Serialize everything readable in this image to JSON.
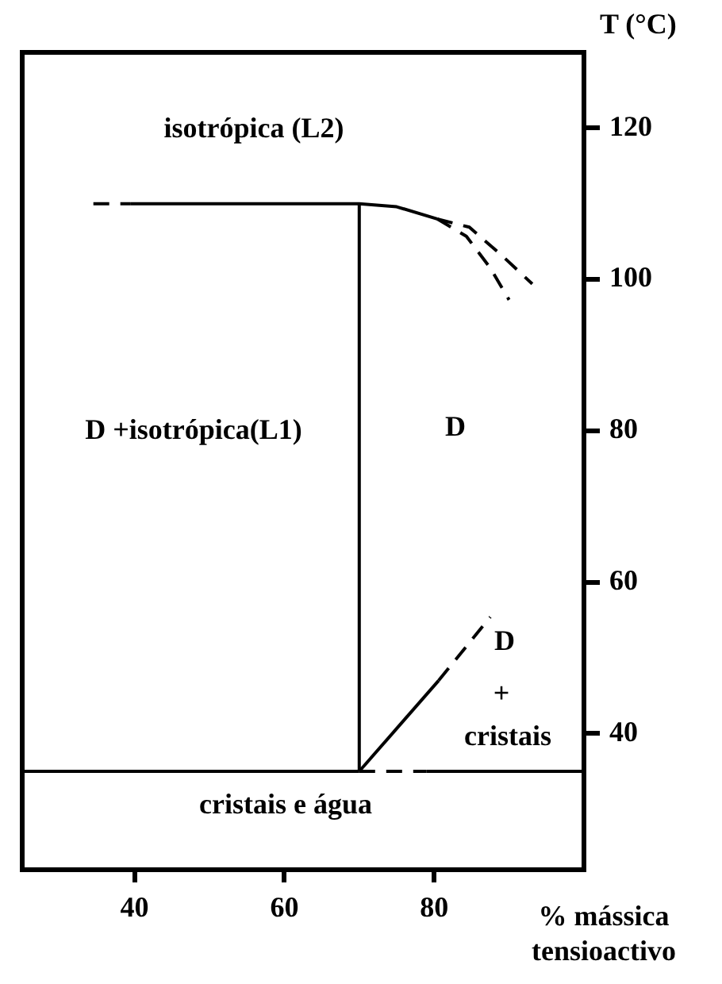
{
  "chart_data": {
    "type": "line",
    "xlabel": "% mássica tensioactivo",
    "ylabel": "T (°C)",
    "xlim": [
      25,
      100
    ],
    "xticks": [
      40,
      60,
      80
    ],
    "ylim": [
      22,
      130
    ],
    "yticks": [
      40,
      60,
      80,
      100,
      120
    ],
    "grid": false,
    "legend": false,
    "marker": "none",
    "series": [
      {
        "color": "#000000",
        "line_style": "dashed",
        "x": [
          34.5,
          39.5
        ],
        "values": [
          110,
          110
        ]
      },
      {
        "color": "#000000",
        "line_style": "solid",
        "x": [
          39.5,
          70,
          75,
          80.4
        ],
        "values": [
          110,
          110,
          109.6,
          108
        ]
      },
      {
        "color": "#000000",
        "line_style": "solid",
        "x": [
          70,
          70
        ],
        "values": [
          35,
          110
        ]
      },
      {
        "color": "#000000",
        "line_style": "solid",
        "x": [
          25,
          70
        ],
        "values": [
          35,
          35
        ]
      },
      {
        "color": "#000000",
        "line_style": "solid",
        "x": [
          79,
          100
        ],
        "values": [
          35,
          35
        ]
      },
      {
        "color": "#000000",
        "line_style": "dashed",
        "x": [
          80.4,
          84.7,
          89,
          93.1
        ],
        "values": [
          108,
          106.9,
          103.2,
          99.4
        ]
      },
      {
        "color": "#000000",
        "line_style": "dashed",
        "x": [
          80.4,
          84.3,
          87.5,
          90
        ],
        "values": [
          108,
          105.7,
          101.5,
          97.3
        ]
      },
      {
        "color": "#000000",
        "line_style": "solid",
        "x": [
          70,
          80.6
        ],
        "values": [
          35,
          47
        ]
      },
      {
        "color": "#000000",
        "line_style": "dashed",
        "x": [
          80.6,
          87.5
        ],
        "values": [
          47,
          55.4
        ]
      },
      {
        "color": "#000000",
        "line_style": "dashed",
        "x": [
          70,
          79
        ],
        "values": [
          35,
          35
        ]
      }
    ],
    "annotations": [
      "isotrópica (L2)",
      "D +isotrópica(L1)",
      "D",
      "D",
      "+",
      "cristais",
      "cristais e água"
    ]
  }
}
